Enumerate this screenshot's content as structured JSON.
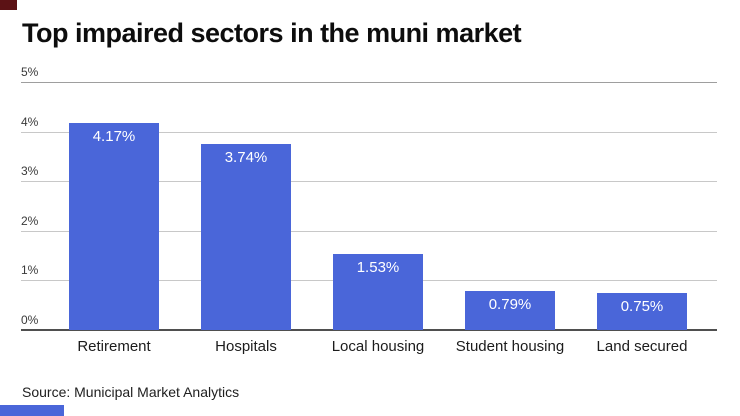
{
  "title": "Top impaired sectors in the muni market",
  "source": "Source: Municipal Market Analytics",
  "branding": {
    "top_left_mark_color": "#5c1215",
    "bottom_left_mark_color": "#4a66d9"
  },
  "colors": {
    "background": "#ffffff",
    "bar": "#4a66d9",
    "gridline": "#c8c8c8",
    "top_gridline": "#9e9e9e",
    "axis_line": "#4f4f4f",
    "title_text": "#0d0d0d",
    "axis_label": "#3a3a3a",
    "category_label": "#1c1c1c",
    "value_label": "#ffffff"
  },
  "chart_data": {
    "type": "bar",
    "title": "Top impaired sectors in the muni market",
    "categories": [
      "Retirement",
      "Hospitals",
      "Local housing",
      "Student housing",
      "Land secured"
    ],
    "values": [
      4.17,
      3.74,
      1.53,
      0.79,
      0.75
    ],
    "value_labels": [
      "4.17%",
      "3.74%",
      "1.53%",
      "0.79%",
      "0.75%"
    ],
    "xlabel": "",
    "ylabel": "",
    "ylim": [
      0,
      5
    ],
    "y_ticks": [
      "0%",
      "1%",
      "2%",
      "3%",
      "4%",
      "5%"
    ],
    "grid": true,
    "legend": false,
    "value_labels_inside_bars": true
  }
}
